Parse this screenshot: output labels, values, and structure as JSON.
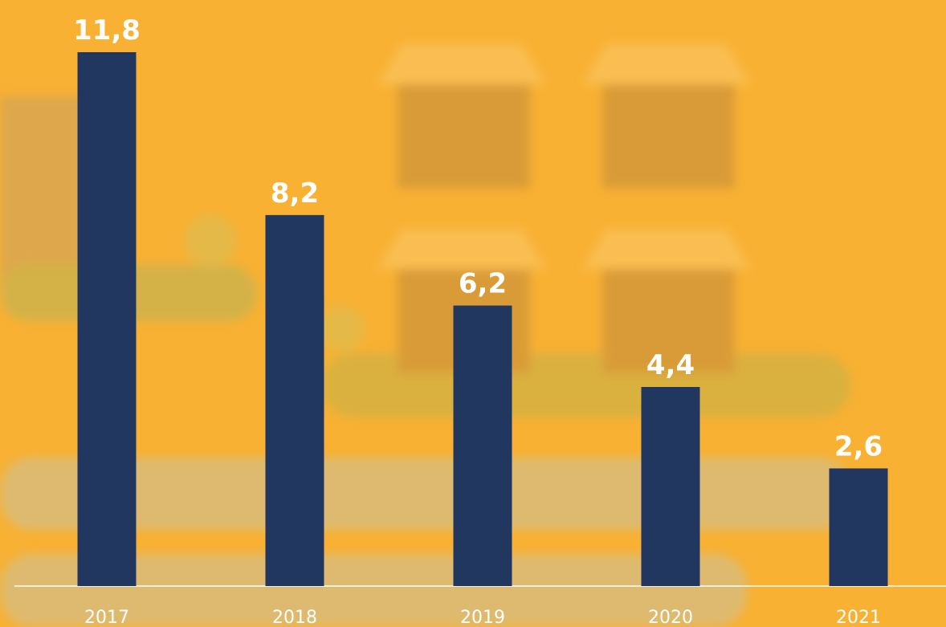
{
  "chart_data": {
    "type": "bar",
    "categories": [
      "2017",
      "2018",
      "2019",
      "2020",
      "2021"
    ],
    "values": [
      11.8,
      8.2,
      6.2,
      4.4,
      2.6
    ],
    "value_labels": [
      "11,8",
      "8,2",
      "6,2",
      "4,4",
      "2,6"
    ],
    "color": "#22375f"
  }
}
